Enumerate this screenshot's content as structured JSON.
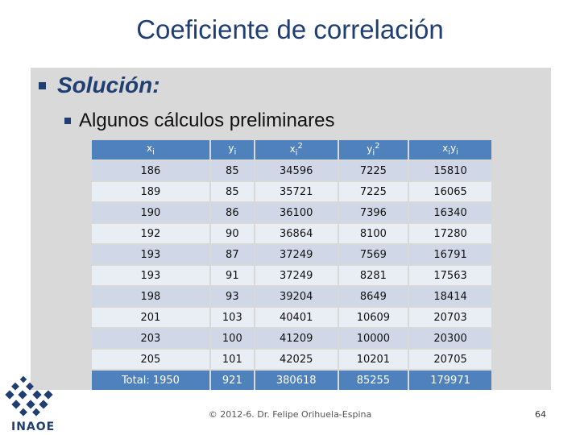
{
  "slide": {
    "title": "Coeficiente de correlación",
    "bullet1": "Solución:",
    "bullet2": "Algunos cálculos preliminares",
    "footer": "© 2012-6. Dr. Felipe Orihuela-Espina",
    "page_number": "64",
    "logo_text": "INAOE"
  },
  "table": {
    "headers": [
      {
        "base": "x",
        "sub": "i",
        "sup": ""
      },
      {
        "base": "y",
        "sub": "i",
        "sup": ""
      },
      {
        "base": "x",
        "sub": "i",
        "sup": "2"
      },
      {
        "base": "y",
        "sub": "i",
        "sup": "2"
      },
      {
        "base": "x",
        "sub": "i",
        "base2": "y",
        "sub2": "i"
      }
    ],
    "rows": [
      [
        "186",
        "85",
        "34596",
        "7225",
        "15810"
      ],
      [
        "189",
        "85",
        "35721",
        "7225",
        "16065"
      ],
      [
        "190",
        "86",
        "36100",
        "7396",
        "16340"
      ],
      [
        "192",
        "90",
        "36864",
        "8100",
        "17280"
      ],
      [
        "193",
        "87",
        "37249",
        "7569",
        "16791"
      ],
      [
        "193",
        "91",
        "37249",
        "8281",
        "17563"
      ],
      [
        "198",
        "93",
        "39204",
        "8649",
        "18414"
      ],
      [
        "201",
        "103",
        "40401",
        "10609",
        "20703"
      ],
      [
        "203",
        "100",
        "41209",
        "10000",
        "20300"
      ],
      [
        "205",
        "101",
        "42025",
        "10201",
        "20705"
      ]
    ],
    "total": [
      "Total:  1950",
      "921",
      "380618",
      "85255",
      "179971"
    ]
  }
}
